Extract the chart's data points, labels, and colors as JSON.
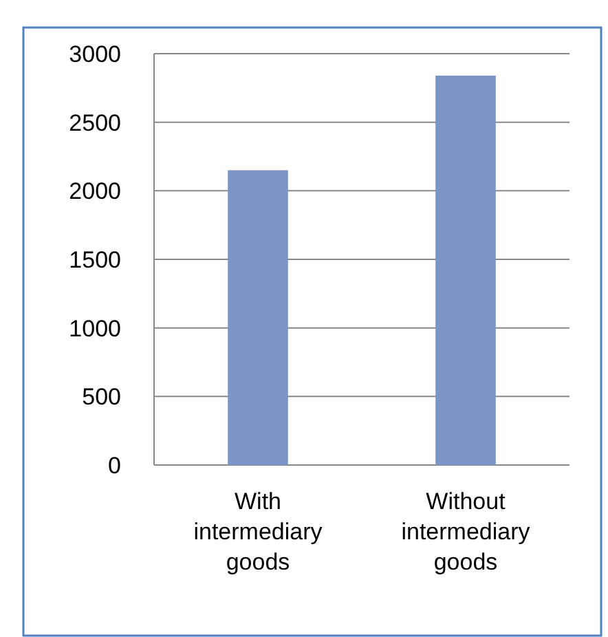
{
  "chart_data": {
    "type": "bar",
    "categories": [
      "With intermediary goods",
      "Without intermediary goods"
    ],
    "values": [
      2150,
      2840
    ],
    "color": "#7b96c6",
    "ylim": [
      0,
      3000
    ],
    "yticks": [
      0,
      500,
      1000,
      1500,
      2000,
      2500,
      3000
    ],
    "grid": "y"
  }
}
